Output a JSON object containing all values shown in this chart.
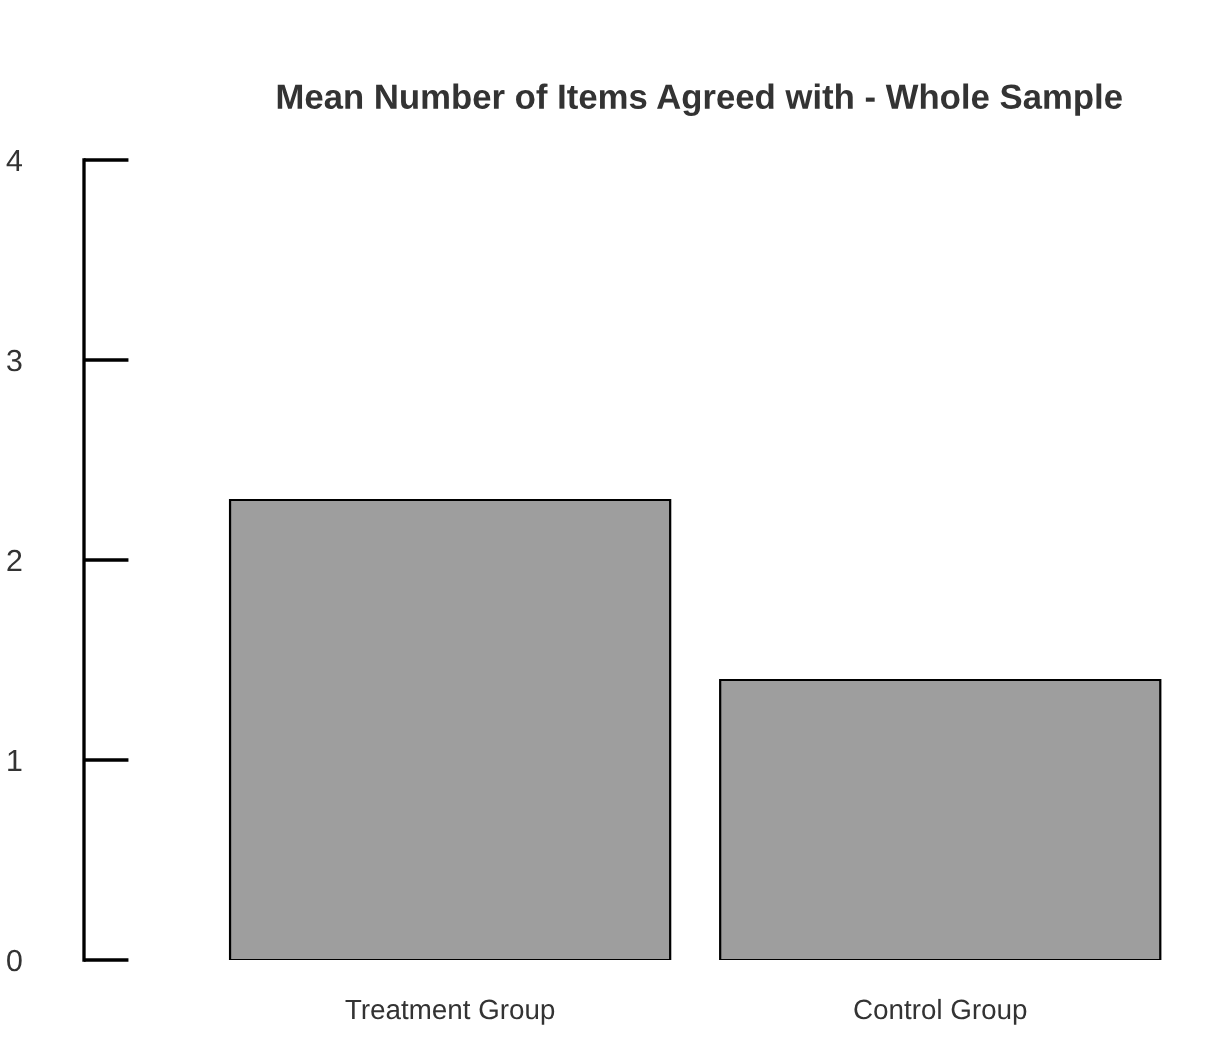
{
  "chart_data": {
    "type": "bar",
    "title": "Mean Number of Items Agreed with - Whole Sample",
    "categories": [
      "Treatment Group",
      "Control Group"
    ],
    "values": [
      2.3,
      1.4
    ],
    "color": "#9e9e9e",
    "ylim": [
      0,
      4
    ],
    "yticks": [
      0,
      1,
      2,
      3,
      4
    ],
    "grid": false,
    "legend": false
  }
}
